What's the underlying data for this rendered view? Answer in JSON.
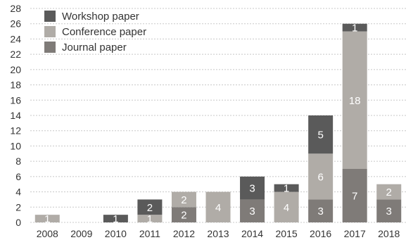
{
  "chart_data": {
    "type": "bar",
    "stacked": true,
    "categories": [
      "2008",
      "2009",
      "2010",
      "2011",
      "2012",
      "2013",
      "2014",
      "2015",
      "2016",
      "2017",
      "2018"
    ],
    "series": [
      {
        "name": "Journal paper",
        "color": "#7f7b78",
        "values": [
          0,
          0,
          0,
          0,
          2,
          0,
          3,
          0,
          3,
          7,
          3
        ]
      },
      {
        "name": "Conference paper",
        "color": "#b0aca7",
        "values": [
          1,
          0,
          0,
          1,
          2,
          4,
          0,
          4,
          6,
          18,
          2
        ]
      },
      {
        "name": "Workshop paper",
        "color": "#5a5a5a",
        "values": [
          0,
          0,
          1,
          2,
          0,
          0,
          3,
          1,
          5,
          1,
          0
        ]
      }
    ],
    "legend_order": [
      "Workshop paper",
      "Conference paper",
      "Journal paper"
    ],
    "ylim": [
      0,
      28
    ],
    "yticks": [
      0,
      2,
      4,
      6,
      8,
      10,
      12,
      14,
      16,
      18,
      20,
      22,
      24,
      26,
      28
    ],
    "grid": true,
    "legend_position": "top-left",
    "title": "",
    "xlabel": "",
    "ylabel": ""
  }
}
